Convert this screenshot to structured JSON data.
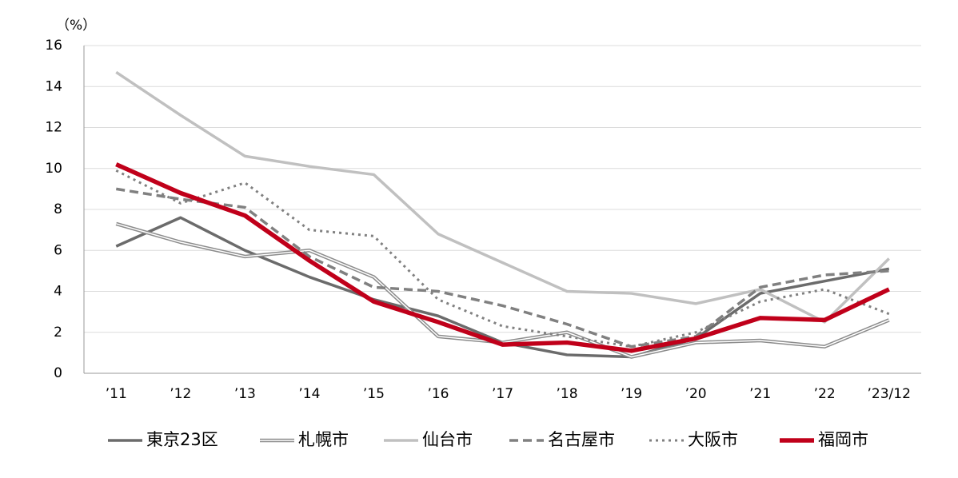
{
  "chart_data": {
    "type": "line",
    "y_label": "（%）",
    "categories": [
      "’11",
      "’12",
      "’13",
      "’14",
      "’15",
      "’16",
      "’17",
      "’18",
      "’19",
      "’20",
      "’21",
      "’22",
      "’23/12"
    ],
    "ylim": [
      0,
      16
    ],
    "yticks": [
      0,
      2,
      4,
      6,
      8,
      10,
      12,
      14,
      16
    ],
    "grid": true,
    "series": [
      {
        "name": "東京23区",
        "color": "#6b6b6b",
        "style": "solid",
        "values": [
          6.2,
          7.6,
          6.0,
          4.7,
          3.6,
          2.8,
          1.5,
          0.9,
          0.8,
          1.7,
          3.9,
          4.5,
          5.1
        ]
      },
      {
        "name": "札幌市",
        "color": "#8c8c8c",
        "style": "double",
        "values": [
          7.3,
          6.4,
          5.7,
          6.0,
          4.7,
          1.8,
          1.5,
          2.0,
          0.8,
          1.5,
          1.6,
          1.3,
          2.6
        ]
      },
      {
        "name": "仙台市",
        "color": "#c0c0c0",
        "style": "solid",
        "values": [
          14.7,
          12.6,
          10.6,
          10.1,
          9.7,
          6.8,
          5.4,
          4.0,
          3.9,
          3.4,
          4.1,
          2.5,
          5.6
        ]
      },
      {
        "name": "名古屋市",
        "color": "#808080",
        "style": "dashed",
        "values": [
          9.0,
          8.5,
          8.1,
          5.7,
          4.2,
          4.0,
          3.3,
          2.4,
          1.3,
          1.8,
          4.2,
          4.8,
          5.0
        ]
      },
      {
        "name": "大阪市",
        "color": "#808080",
        "style": "dotted",
        "values": [
          9.9,
          8.3,
          9.3,
          7.0,
          6.7,
          3.6,
          2.3,
          1.8,
          1.3,
          2.0,
          3.5,
          4.1,
          2.9
        ]
      },
      {
        "name": "福岡市",
        "color": "#c0001a",
        "style": "bold",
        "values": [
          10.2,
          8.8,
          7.7,
          5.5,
          3.5,
          2.5,
          1.4,
          1.5,
          1.1,
          1.7,
          2.7,
          2.6,
          4.1
        ]
      }
    ]
  }
}
